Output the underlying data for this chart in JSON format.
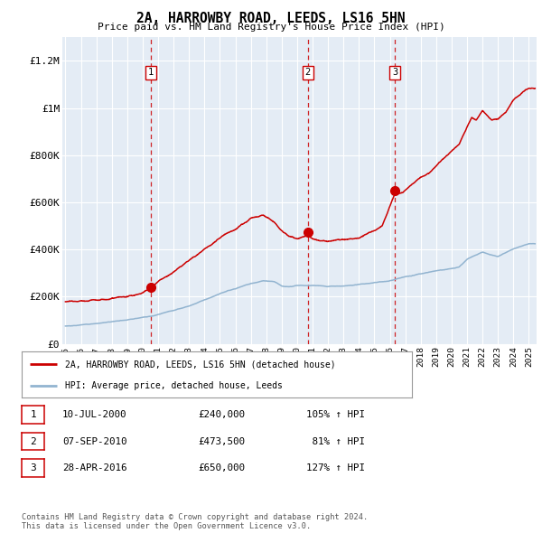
{
  "title": "2A, HARROWBY ROAD, LEEDS, LS16 5HN",
  "subtitle": "Price paid vs. HM Land Registry's House Price Index (HPI)",
  "legend_line1": "2A, HARROWBY ROAD, LEEDS, LS16 5HN (detached house)",
  "legend_line2": "HPI: Average price, detached house, Leeds",
  "footer_line1": "Contains HM Land Registry data © Crown copyright and database right 2024.",
  "footer_line2": "This data is licensed under the Open Government Licence v3.0.",
  "purchases": [
    {
      "num": 1,
      "date": "10-JUL-2000",
      "price": 240000,
      "pct": "105% ↑ HPI",
      "year": 2000.53
    },
    {
      "num": 2,
      "date": "07-SEP-2010",
      "price": 473500,
      "pct": " 81% ↑ HPI",
      "year": 2010.68
    },
    {
      "num": 3,
      "date": "28-APR-2016",
      "price": 650000,
      "pct": "127% ↑ HPI",
      "year": 2016.32
    }
  ],
  "hpi_color": "#92B4D0",
  "price_color": "#CC0000",
  "bg_color": "#E4ECF5",
  "grid_color": "#ffffff",
  "ylim": [
    0,
    1300000
  ],
  "yticks": [
    0,
    200000,
    400000,
    600000,
    800000,
    1000000,
    1200000
  ],
  "ytick_labels": [
    "£0",
    "£200K",
    "£400K",
    "£600K",
    "£800K",
    "£1M",
    "£1.2M"
  ],
  "xmin": 1994.8,
  "xmax": 2025.5
}
